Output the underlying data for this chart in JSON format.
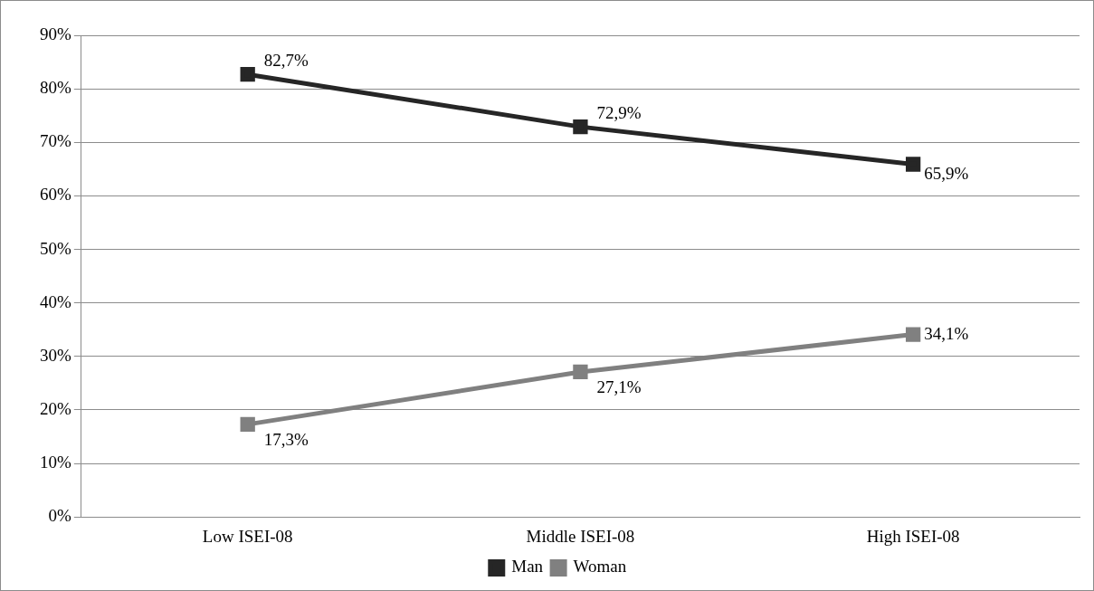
{
  "chart_data": {
    "type": "line",
    "categories": [
      "Low ISEI-08",
      "Middle ISEI-08",
      "High ISEI-08"
    ],
    "series": [
      {
        "name": "Man",
        "color": "#262626",
        "values": [
          82.7,
          72.9,
          65.9
        ],
        "value_labels": [
          "82,7%",
          "72,9%",
          "65,9%"
        ]
      },
      {
        "name": "Woman",
        "color": "#808080",
        "values": [
          17.3,
          27.1,
          34.1
        ],
        "value_labels": [
          "17,3%",
          "27,1%",
          "34,1%"
        ]
      }
    ],
    "ylim": [
      0,
      90
    ],
    "yticks": [
      {
        "value": 0,
        "label": "0%"
      },
      {
        "value": 10,
        "label": "10%"
      },
      {
        "value": 20,
        "label": "20%"
      },
      {
        "value": 30,
        "label": "30%"
      },
      {
        "value": 40,
        "label": "40%"
      },
      {
        "value": 50,
        "label": "50%"
      },
      {
        "value": 60,
        "label": "60%"
      },
      {
        "value": 70,
        "label": "70%"
      },
      {
        "value": 80,
        "label": "80%"
      },
      {
        "value": 90,
        "label": "90%"
      }
    ],
    "grid": "y",
    "legend": "bottom",
    "marker": "square",
    "line_style": "solid"
  }
}
